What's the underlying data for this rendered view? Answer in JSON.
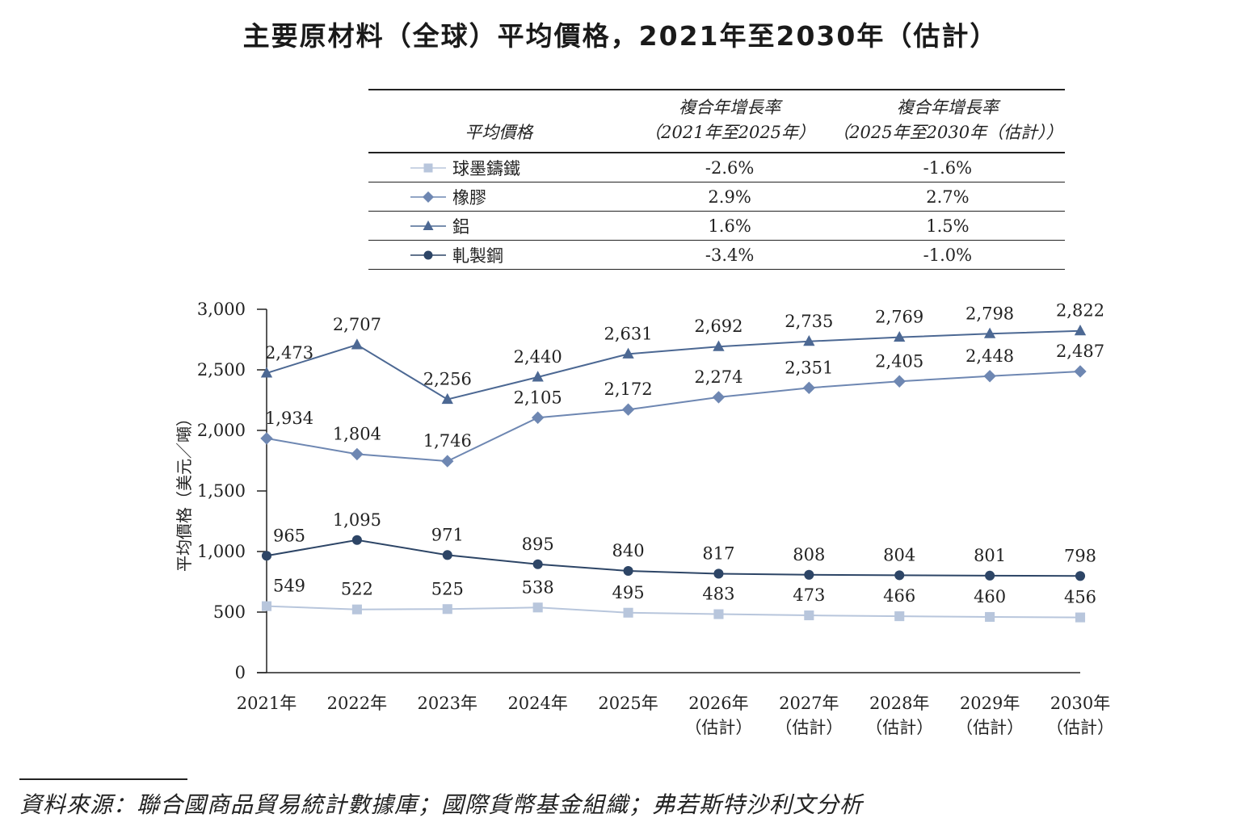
{
  "title": "主要原材料（全球）平均價格，2021年至2030年（估計）",
  "table": {
    "header_name": "平均價格",
    "header_cagr1_line1": "複合年增長率",
    "header_cagr1_line2": "（2021年至2025年）",
    "header_cagr2_line1": "複合年增長率",
    "header_cagr2_line2": "（2025年至2030年（估計））",
    "rows": [
      {
        "name": "球墨鑄鐵",
        "cagr1": "-2.6%",
        "cagr2": "-1.6%",
        "marker": "square",
        "color": "#b8c6dc"
      },
      {
        "name": "橡膠",
        "cagr1": "2.9%",
        "cagr2": "2.7%",
        "marker": "diamond",
        "color": "#6e87b2"
      },
      {
        "name": "鋁",
        "cagr1": "1.6%",
        "cagr2": "1.5%",
        "marker": "triangle",
        "color": "#4c6893"
      },
      {
        "name": "軋製鋼",
        "cagr1": "-3.4%",
        "cagr2": "-1.0%",
        "marker": "circle",
        "color": "#2d4566"
      }
    ]
  },
  "chart_data": {
    "type": "line",
    "ylabel": "平均價格（美元／噸）",
    "ylim": [
      0,
      3000
    ],
    "yticks": [
      "0",
      "500",
      "1,000",
      "1,500",
      "2,000",
      "2,500",
      "3,000"
    ],
    "categories": [
      [
        "2021年",
        ""
      ],
      [
        "2022年",
        ""
      ],
      [
        "2023年",
        ""
      ],
      [
        "2024年",
        ""
      ],
      [
        "2025年",
        ""
      ],
      [
        "2026年",
        "（估計）"
      ],
      [
        "2027年",
        "（估計）"
      ],
      [
        "2028年",
        "（估計）"
      ],
      [
        "2029年",
        "（估計）"
      ],
      [
        "2030年",
        "（估計）"
      ]
    ],
    "series": [
      {
        "name": "球墨鑄鐵",
        "marker": "square",
        "color": "#b8c6dc",
        "values": [
          549,
          522,
          525,
          538,
          495,
          483,
          473,
          466,
          460,
          456
        ],
        "labels": [
          "549",
          "522",
          "525",
          "538",
          "495",
          "483",
          "473",
          "466",
          "460",
          "456"
        ]
      },
      {
        "name": "橡膠",
        "marker": "diamond",
        "color": "#6e87b2",
        "values": [
          1934,
          1804,
          1746,
          2105,
          2172,
          2274,
          2351,
          2405,
          2448,
          2487
        ],
        "labels": [
          "1,934",
          "1,804",
          "1,746",
          "2,105",
          "2,172",
          "2,274",
          "2,351",
          "2,405",
          "2,448",
          "2,487"
        ]
      },
      {
        "name": "鋁",
        "marker": "triangle",
        "color": "#4c6893",
        "values": [
          2473,
          2707,
          2256,
          2440,
          2631,
          2692,
          2735,
          2769,
          2798,
          2822
        ],
        "labels": [
          "2,473",
          "2,707",
          "2,256",
          "2,440",
          "2,631",
          "2,692",
          "2,735",
          "2,769",
          "2,798",
          "2,822"
        ]
      },
      {
        "name": "軋製鋼",
        "marker": "circle",
        "color": "#2d4566",
        "values": [
          965,
          1095,
          971,
          895,
          840,
          817,
          808,
          804,
          801,
          798
        ],
        "labels": [
          "965",
          "1,095",
          "971",
          "895",
          "840",
          "817",
          "808",
          "804",
          "801",
          "798"
        ]
      }
    ]
  },
  "source": "資料來源：聯合國商品貿易統計數據庫；國際貨幣基金組織；弗若斯特沙利文分析"
}
